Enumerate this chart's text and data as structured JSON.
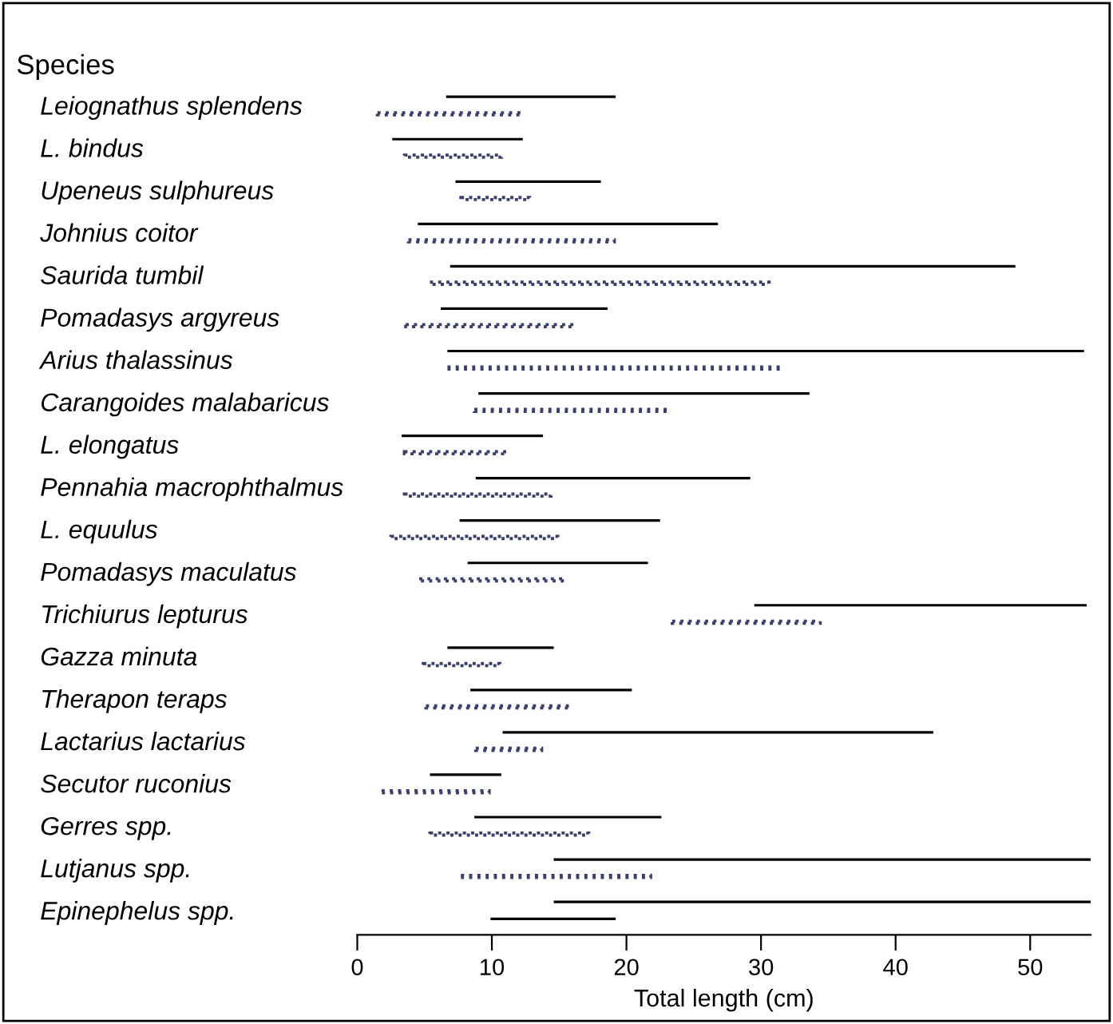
{
  "chart_data": {
    "type": "bar",
    "orientation": "horizontal",
    "ylabel": "Species",
    "xlabel": "Total length (cm)",
    "categories": [
      "Leiognathus splendens",
      "L. bindus",
      "Upeneus sulphureus",
      "Johnius coitor",
      "Saurida tumbil",
      "Pomadasys argyreus",
      "Arius thalassinus",
      "Carangoides malabaricus",
      "L. elongatus",
      "Pennahia macrophthalmus",
      "L. equulus",
      "Pomadasys maculatus",
      "Trichiurus lepturus",
      "Gazza minuta",
      "Therapon teraps",
      "Lactarius lactarius",
      "Secutor ruconius",
      "Gerres spp.",
      "Lutjanus spp.",
      "Epinephelus spp."
    ],
    "series": [
      {
        "color": "#000000",
        "line_style": "solid",
        "base": [
          6.6,
          2.6,
          7.3,
          4.5,
          6.9,
          6.2,
          6.7,
          9.0,
          3.3,
          8.8,
          7.6,
          8.2,
          29.5,
          6.7,
          8.4,
          10.8,
          5.4,
          8.7,
          14.6,
          14.6
        ],
        "values": [
          12.6,
          9.7,
          10.8,
          22.3,
          42.0,
          12.4,
          47.3,
          24.6,
          10.5,
          20.4,
          14.9,
          13.4,
          24.7,
          7.9,
          12.0,
          32.0,
          5.3,
          13.9,
          39.9,
          39.9
        ]
      },
      {
        "color": "#3a3f6b",
        "line_style": "dotted",
        "base": [
          1.5,
          3.5,
          7.7,
          3.8,
          5.4,
          3.6,
          6.7,
          8.7,
          3.5,
          3.5,
          2.5,
          4.6,
          23.4,
          4.9,
          5.1,
          8.8,
          1.8,
          5.4,
          7.7,
          null
        ],
        "values": [
          10.7,
          7.2,
          5.1,
          15.3,
          25.2,
          12.5,
          24.8,
          14.4,
          7.6,
          10.9,
          12.4,
          10.8,
          11.0,
          5.7,
          10.7,
          4.9,
          8.0,
          11.8,
          14.1,
          null
        ]
      },
      {
        "color": "#000000",
        "line_style": "solid",
        "base": [
          null,
          null,
          null,
          null,
          null,
          null,
          null,
          null,
          null,
          null,
          null,
          null,
          null,
          null,
          null,
          null,
          null,
          null,
          null,
          9.9
        ],
        "values": [
          null,
          null,
          null,
          null,
          null,
          null,
          null,
          null,
          null,
          null,
          null,
          null,
          null,
          null,
          null,
          null,
          null,
          null,
          null,
          9.3
        ]
      }
    ],
    "xlim": [
      0,
      54.5
    ],
    "xticks": [
      0,
      10,
      20,
      30,
      40,
      50
    ],
    "grid": false,
    "legend": false
  }
}
